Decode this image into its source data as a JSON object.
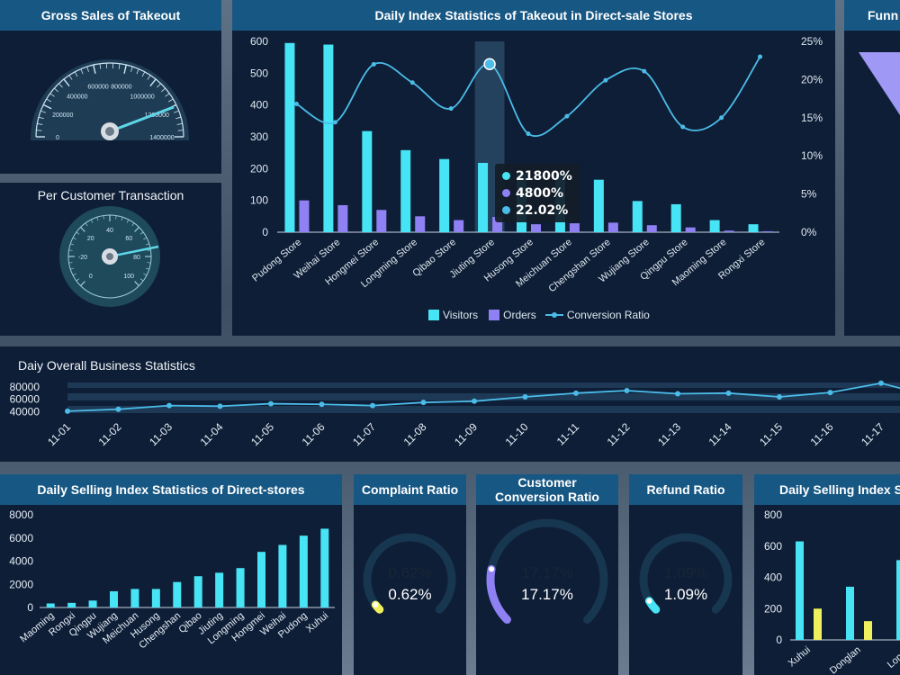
{
  "colors": {
    "panel": "#0e1e36",
    "title_bar": "#175783",
    "cyan": "#47e4f5",
    "purple": "#8f80f3",
    "line": "#4bbce8",
    "yellow": "#f0ef5d"
  },
  "gross_sales": {
    "title": "Gross Sales of Takeout",
    "ticks": [
      "0",
      "200000",
      "400000",
      "600000",
      "800000",
      "1000000",
      "1200000",
      "1400000"
    ],
    "value_fraction": 0.9
  },
  "per_customer": {
    "title": "Per Customer Transaction",
    "ticks": [
      "0",
      "-20",
      "20",
      "40",
      "60",
      "80",
      "100"
    ],
    "value_fraction": 0.7
  },
  "daily_index": {
    "title": "Daily Index Statistics of Takeout in Direct-sale Stores",
    "legend": [
      "Visitors",
      "Orders",
      "Conversion Ratio"
    ],
    "tooltip": [
      "21800%",
      "4800%",
      "22.02%"
    ]
  },
  "funnel": {
    "title": "Funn"
  },
  "overall": {
    "title": "Daiy Overall Business Statistics"
  },
  "selling_index": {
    "title": "Daily Selling Index Statistics of Direct-stores"
  },
  "complaint": {
    "title": "Complaint Ratio",
    "value": "0.62%",
    "value2": "0.62%",
    "ratio": 0.0062
  },
  "conversion": {
    "title": "Customer Conversion Ratio",
    "value": "17.17%",
    "value2": "17.17%",
    "ratio": 0.1717
  },
  "refund": {
    "title": "Refund Ratio",
    "value": "1.09%",
    "value2": "1.09%",
    "ratio": 0.0109
  },
  "selling_index2": {
    "title": "Daily Selling Index S"
  },
  "chart_data": [
    {
      "type": "bar",
      "title": "Daily Index Statistics of Takeout in Direct-sale Stores",
      "categories": [
        "Pudong Store",
        "Weihai Store",
        "Hongmei Store",
        "Longming Store",
        "Qibao Store",
        "Jiuting Store",
        "Husong Store",
        "Meichuan Store",
        "Chengshan Store",
        "Wujiang Store",
        "Qingpu Store",
        "Maoming Store",
        "Rongxi Store"
      ],
      "series": [
        {
          "name": "Visitors",
          "values": [
            595,
            590,
            318,
            258,
            230,
            218,
            185,
            183,
            165,
            98,
            88,
            38,
            25
          ]
        },
        {
          "name": "Orders",
          "values": [
            100,
            85,
            70,
            50,
            38,
            48,
            25,
            28,
            30,
            22,
            15,
            5,
            3
          ]
        },
        {
          "name": "Conversion Ratio",
          "values": [
            16.8,
            14.4,
            22.0,
            19.6,
            16.2,
            22.02,
            12.9,
            15.2,
            19.9,
            21.1,
            13.8,
            15.0,
            23.0
          ],
          "axis": "right"
        }
      ],
      "ylim": [
        0,
        600
      ],
      "y_ticks": [
        "0",
        "100",
        "200",
        "300",
        "400",
        "500",
        "600"
      ],
      "y2lim": [
        0,
        25
      ],
      "y2_ticks": [
        "0%",
        "5%",
        "10%",
        "15%",
        "20%",
        "25%"
      ],
      "highlight_index": 5,
      "legend_position": "bottom"
    },
    {
      "type": "line",
      "title": "Daiy Overall Business Statistics",
      "x": [
        "11-01",
        "11-02",
        "11-03",
        "11-04",
        "11-05",
        "11-06",
        "11-07",
        "11-08",
        "11-09",
        "11-10",
        "11-11",
        "11-12",
        "11-13",
        "11-14",
        "11-15",
        "11-16",
        "11-17"
      ],
      "values": [
        41000,
        44000,
        50000,
        49000,
        53000,
        52000,
        50000,
        55000,
        57000,
        64000,
        70000,
        74000,
        69000,
        70000,
        64000,
        71000,
        86000
      ],
      "y_ticks": [
        "40000",
        "60000",
        "80000"
      ],
      "ylim": [
        35000,
        90000
      ]
    },
    {
      "type": "bar",
      "title": "Daily Selling Index Statistics of Direct-stores",
      "categories": [
        "Maoming",
        "Rongxi",
        "Qingpu",
        "Wujiang",
        "Meichuan",
        "Husong",
        "Chengshan",
        "Qibao",
        "Jiuting",
        "Longming",
        "Hongmei",
        "Weihai",
        "Pudong",
        "Xuhui"
      ],
      "values": [
        350,
        400,
        600,
        1400,
        1600,
        1600,
        2200,
        2700,
        3000,
        3400,
        4800,
        5400,
        6200,
        6800
      ],
      "y_ticks": [
        "0",
        "2000",
        "4000",
        "6000",
        "8000"
      ],
      "ylim": [
        0,
        8000
      ]
    },
    {
      "type": "bar",
      "title": "Daily Selling Index S",
      "categories": [
        "Xuhui",
        "Donglan",
        "Longp"
      ],
      "series": [
        {
          "values": [
            630,
            340,
            510
          ]
        },
        {
          "values": [
            200,
            120,
            0
          ]
        }
      ],
      "y_ticks": [
        "0",
        "200",
        "400",
        "600",
        "800"
      ],
      "ylim": [
        0,
        800
      ]
    }
  ]
}
